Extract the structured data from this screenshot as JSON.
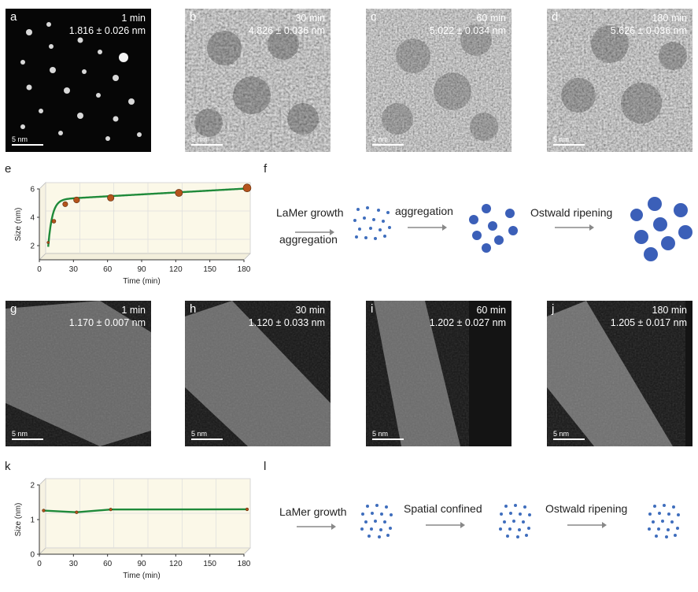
{
  "top_row": [
    {
      "label": "a",
      "time": "1 min",
      "size": "1.816 ± 0.026 nm",
      "scale": "5 nm"
    },
    {
      "label": "b",
      "time": "30 min",
      "size": "4.826 ± 0.036 nm",
      "scale": "5 nm"
    },
    {
      "label": "c",
      "time": "60 min",
      "size": "5.022 ± 0.034 nm",
      "scale": "5 nm"
    },
    {
      "label": "d",
      "time": "180 min",
      "size": "5.626 ± 0.036 nm",
      "scale": "5 nm"
    }
  ],
  "bottom_row": [
    {
      "label": "g",
      "time": "1 min",
      "size": "1.170 ± 0.007 nm",
      "scale": "5 nm"
    },
    {
      "label": "h",
      "time": "30 min",
      "size": "1.120 ± 0.033 nm",
      "scale": "5 nm"
    },
    {
      "label": "i",
      "time": "60 min",
      "size": "1.202 ± 0.027 nm",
      "scale": "5 nm"
    },
    {
      "label": "j",
      "time": "180 min",
      "size": "1.205 ± 0.017 nm",
      "scale": "5 nm"
    }
  ],
  "scheme_f": {
    "label": "f",
    "step1_top": "LaMer growth",
    "step1_bottom": "aggregation",
    "step2": "aggregation",
    "step3": "Ostwald ripening"
  },
  "scheme_l": {
    "label": "l",
    "step1": "LaMer growth",
    "step2": "Spatial confined",
    "step3": "Ostwald ripening"
  },
  "colors": {
    "dot": "#3f6ebd",
    "sphere": "#3b5fb8",
    "line": "#1f8a3a",
    "marker": "#b5541c",
    "plot_bg": "#fbf8e8"
  },
  "chart_data": [
    {
      "panel": "e",
      "type": "line",
      "xlabel": "Time (min)",
      "ylabel": "Size (nm)",
      "xlim": [
        0,
        180
      ],
      "ylim": [
        1,
        6
      ],
      "xticks": [
        0,
        30,
        60,
        90,
        120,
        150,
        180
      ],
      "yticks": [
        2,
        4,
        6
      ],
      "x": [
        5,
        10,
        20,
        30,
        60,
        120,
        180
      ],
      "y": [
        2.0,
        3.5,
        4.7,
        5.0,
        5.15,
        5.5,
        5.85
      ],
      "fit_curve": true
    },
    {
      "panel": "k",
      "type": "line",
      "xlabel": "Time (min)",
      "ylabel": "Size (nm)",
      "xlim": [
        0,
        180
      ],
      "ylim": [
        0,
        2
      ],
      "xticks": [
        0,
        30,
        60,
        90,
        120,
        150,
        180
      ],
      "yticks": [
        0,
        1,
        2
      ],
      "x": [
        1,
        30,
        60,
        180
      ],
      "y": [
        1.17,
        1.12,
        1.2,
        1.205
      ]
    }
  ]
}
